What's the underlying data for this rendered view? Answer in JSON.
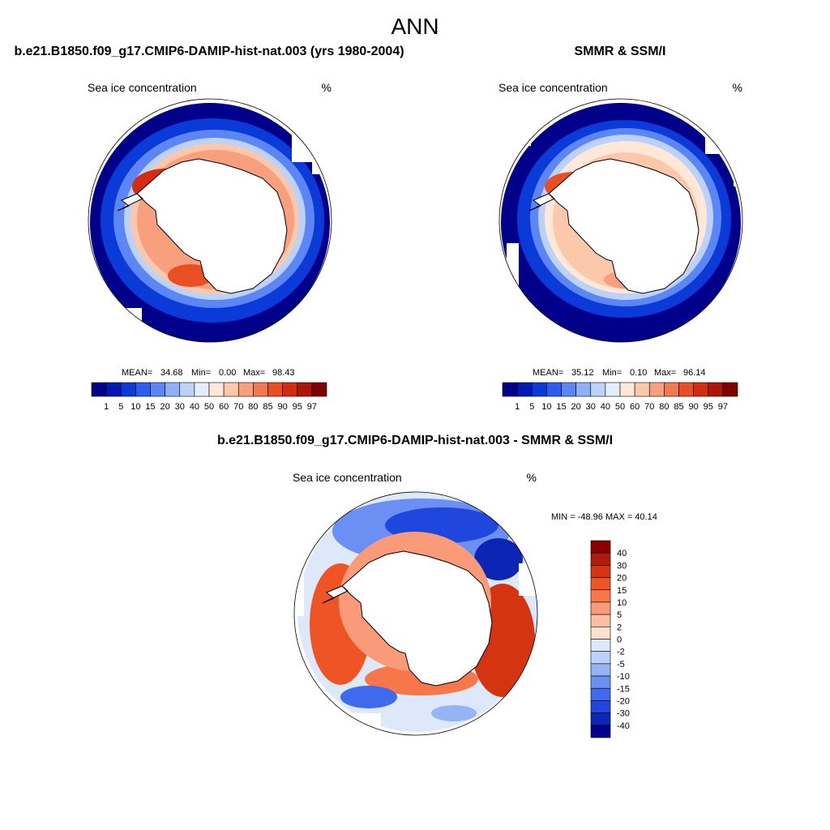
{
  "figure": {
    "title": "ANN"
  },
  "panels": {
    "model": {
      "title": "b.e21.B1850.f09_g17.CMIP6-DAMIP-hist-nat.003 (yrs 1980-2004)",
      "variable": "Sea ice concentration",
      "units": "%",
      "stats": {
        "mean_label": "MEAN=",
        "mean": "34.68",
        "min_label": "Min=",
        "min": "0.00",
        "max_label": "Max=",
        "max": "98.43"
      },
      "ice_extent": "model"
    },
    "obs": {
      "title": "SMMR & SSM/I",
      "variable": "Sea ice concentration",
      "units": "%",
      "stats": {
        "mean_label": "MEAN=",
        "mean": "35.12",
        "min_label": "Min=",
        "min": "0.10",
        "max_label": "Max=",
        "max": "96.14"
      },
      "ice_extent": "obs"
    },
    "diff": {
      "title": "b.e21.B1850.f09_g17.CMIP6-DAMIP-hist-nat.003 - SMMR & SSM/I",
      "variable": "Sea ice concentration",
      "units": "%",
      "minmax_text": "MIN = -48.96 MAX =  40.14"
    }
  },
  "colorbars": {
    "concentration": {
      "labels": [
        "1",
        "5",
        "10",
        "15",
        "20",
        "30",
        "40",
        "50",
        "60",
        "70",
        "80",
        "85",
        "90",
        "95",
        "97"
      ],
      "colors": [
        "#00008b",
        "#0019b4",
        "#0a3ad8",
        "#2f5cf0",
        "#5c86f5",
        "#8fb0f8",
        "#bcd2fb",
        "#e3efff",
        "#ffe8d8",
        "#fcc8ac",
        "#f8a07e",
        "#f27a52",
        "#ea4e25",
        "#d42c0e",
        "#ac1608",
        "#800000"
      ]
    },
    "difference": {
      "labels": [
        "40",
        "30",
        "20",
        "15",
        "10",
        "5",
        "2",
        "0",
        "-2",
        "-5",
        "-10",
        "-15",
        "-20",
        "-30",
        "-40"
      ],
      "colors": [
        "#8a0000",
        "#b01a08",
        "#d43410",
        "#ef5424",
        "#f7774a",
        "#f99a78",
        "#fbbea2",
        "#fde0d2",
        "#dde9fb",
        "#bcd2f8",
        "#94b4f5",
        "#6b8ff2",
        "#3f6aee",
        "#1f47dd",
        "#0c25b4",
        "#00008b"
      ]
    }
  }
}
